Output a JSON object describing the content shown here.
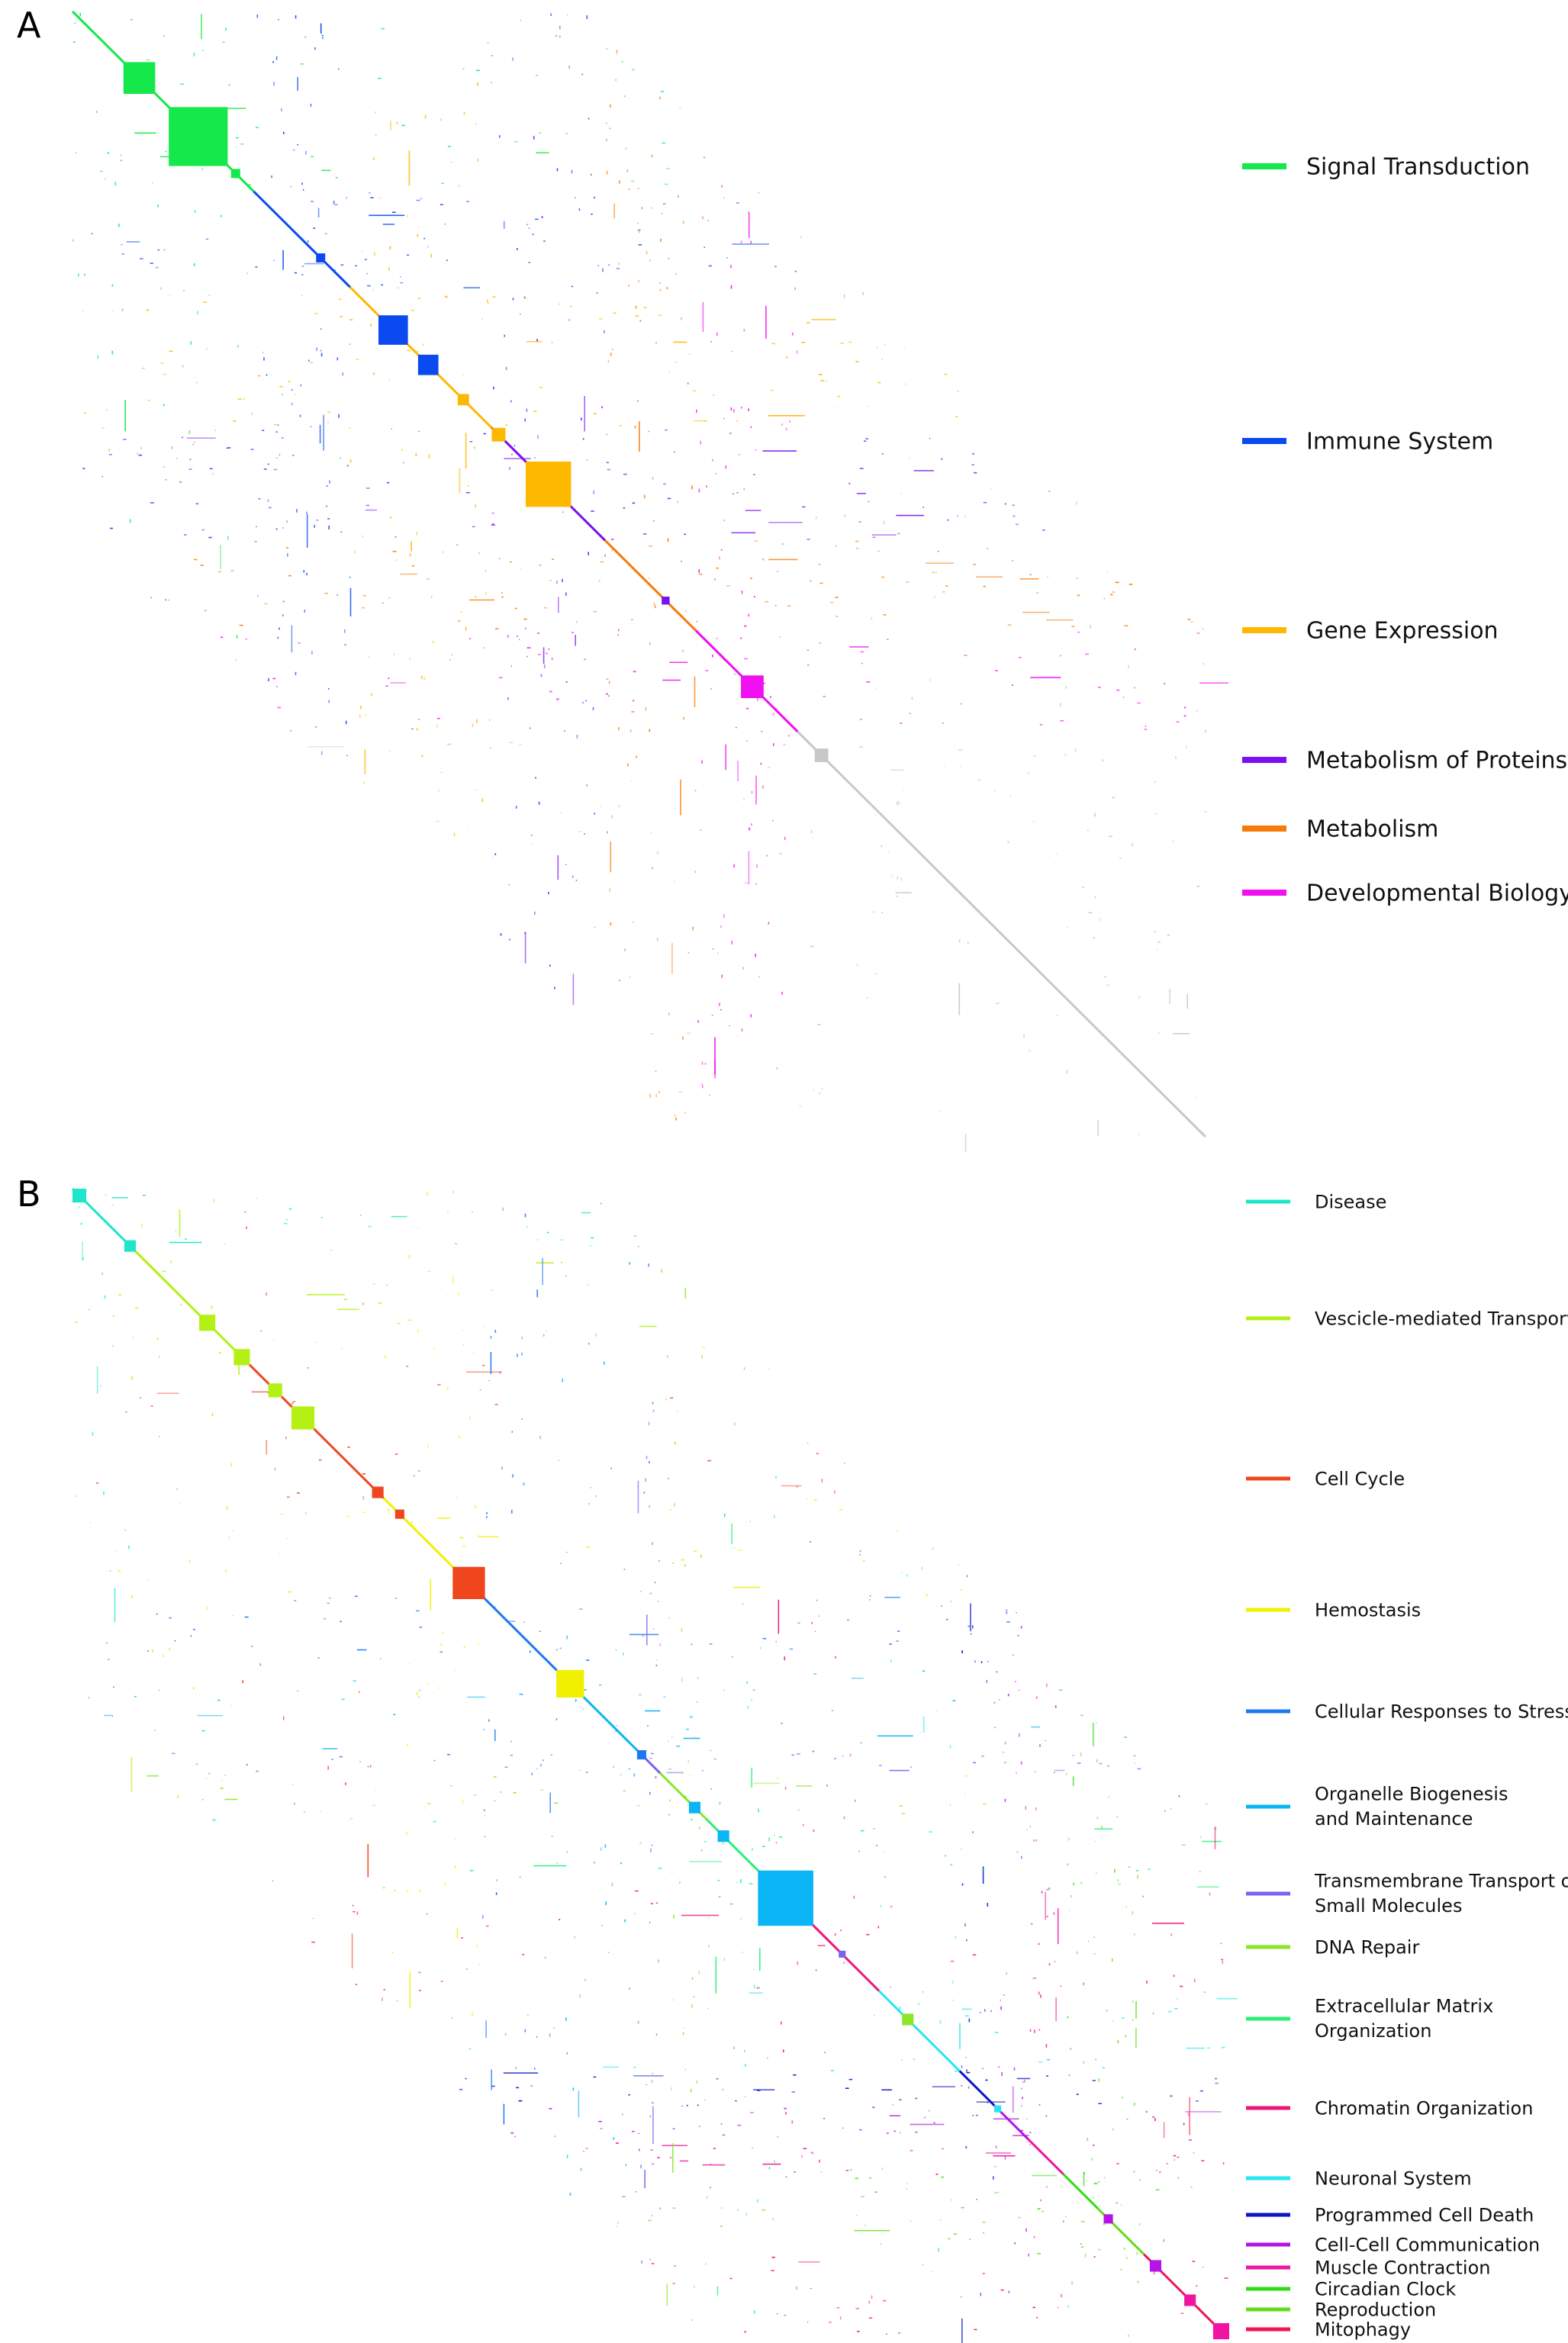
{
  "chart_data": [
    {
      "type": "heatmap",
      "panel_label": "A",
      "legend_placement": "right",
      "categories": [
        {
          "name": "Signal Transduction",
          "color": "#14e84a"
        },
        {
          "name": "Immune System",
          "color": "#0a4af0"
        },
        {
          "name": "Gene Expression",
          "color": "#ffb800"
        },
        {
          "name": "Metabolism of Proteins",
          "color": "#7a10f0"
        },
        {
          "name": "Metabolism",
          "color": "#f57c0a"
        },
        {
          "name": "Developmental Biology",
          "color": "#f010f0"
        }
      ]
    },
    {
      "type": "heatmap",
      "panel_label": "B",
      "legend_placement": "right",
      "categories": [
        {
          "name": "Disease",
          "color": "#1ee6c8"
        },
        {
          "name": "Vescicle-mediated Transport",
          "color": "#b4f014"
        },
        {
          "name": "Cell Cycle",
          "color": "#f0461e"
        },
        {
          "name": "Hemostasis",
          "color": "#f0f000"
        },
        {
          "name": "Cellular Responses to Stress",
          "color": "#1e78f0"
        },
        {
          "name": "Organelle Biogenesis and Maintenance",
          "color": "#0ab4f5"
        },
        {
          "name": "Transmembrane Transport of Small Molecules",
          "color": "#7864f0"
        },
        {
          "name": "DNA Repair",
          "color": "#8ce628"
        },
        {
          "name": "Extracellular Matrix Organization",
          "color": "#28f078"
        },
        {
          "name": "Chromatin Organization",
          "color": "#f01478"
        },
        {
          "name": "Neuronal System",
          "color": "#28e6f0"
        },
        {
          "name": "Programmed Cell Death",
          "color": "#0a14c8"
        },
        {
          "name": "Cell-Cell Communication",
          "color": "#b414e6"
        },
        {
          "name": "Muscle Contraction",
          "color": "#f014a0"
        },
        {
          "name": "Circadian Clock",
          "color": "#32dc14"
        },
        {
          "name": "Reproduction",
          "color": "#64dc1e"
        },
        {
          "name": "Mitophagy",
          "color": "#f01450"
        }
      ]
    }
  ]
}
